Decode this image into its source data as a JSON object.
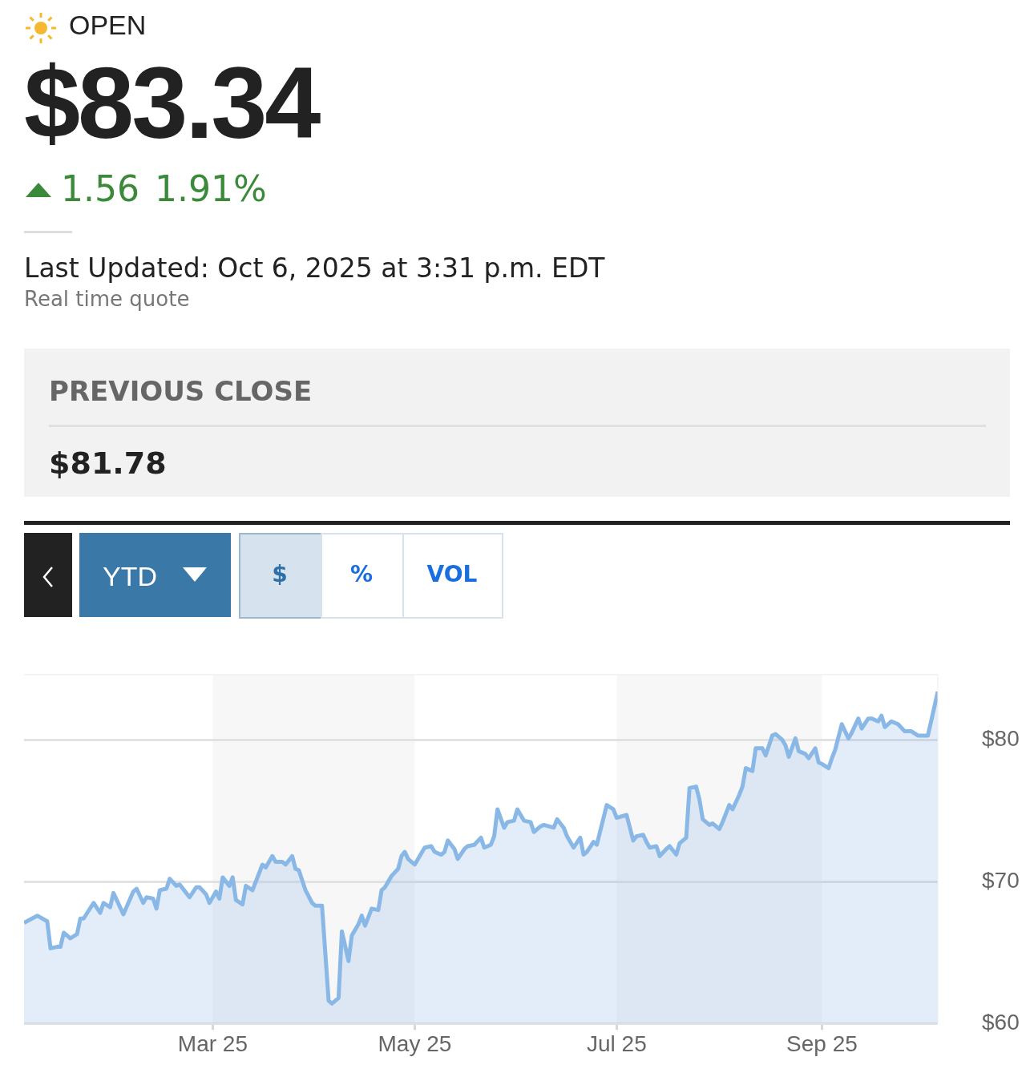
{
  "chart_data": {
    "type": "area",
    "title": "$83.34",
    "annotations": [
      "OPEN",
      "1.56",
      "1.91%",
      "Last Updated: Oct 6, 2025 at 3:31 p.m. EDT",
      "Real time quote",
      "PREVIOUS CLOSE",
      "$81.78",
      "YTD",
      "$",
      "%",
      "VOL"
    ],
    "x": [
      "2025-01-03",
      "2025-01-07",
      "2025-01-10",
      "2025-01-11",
      "2025-01-13",
      "2025-01-14",
      "2025-01-15",
      "2025-01-17",
      "2025-01-19",
      "2025-01-20",
      "2025-01-21",
      "2025-01-24",
      "2025-01-26",
      "2025-01-27",
      "2025-01-29",
      "2025-01-30",
      "2025-02-02",
      "2025-02-05",
      "2025-02-06",
      "2025-02-08",
      "2025-02-09",
      "2025-02-11",
      "2025-02-12",
      "2025-02-13",
      "2025-02-15",
      "2025-02-16",
      "2025-02-18",
      "2025-02-19",
      "2025-02-21",
      "2025-02-22",
      "2025-02-24",
      "2025-02-25",
      "2025-02-27",
      "2025-02-28",
      "2025-03-02",
      "2025-03-03",
      "2025-03-04",
      "2025-03-06",
      "2025-03-07",
      "2025-03-08",
      "2025-03-10",
      "2025-03-11",
      "2025-03-13",
      "2025-03-16",
      "2025-03-17",
      "2025-03-19",
      "2025-03-20",
      "2025-03-22",
      "2025-03-23",
      "2025-03-25",
      "2025-03-26",
      "2025-03-27",
      "2025-03-29",
      "2025-03-31",
      "2025-04-01",
      "2025-04-03",
      "2025-04-05",
      "2025-04-06",
      "2025-04-08",
      "2025-04-09",
      "2025-04-11",
      "2025-04-12",
      "2025-04-14",
      "2025-04-15",
      "2025-04-16",
      "2025-04-18",
      "2025-04-20",
      "2025-04-21",
      "2025-04-22",
      "2025-04-24",
      "2025-04-26",
      "2025-04-27",
      "2025-04-28",
      "2025-04-29",
      "2025-05-01",
      "2025-05-04",
      "2025-05-06",
      "2025-05-07",
      "2025-05-09",
      "2025-05-10",
      "2025-05-11",
      "2025-05-13",
      "2025-05-14",
      "2025-05-16",
      "2025-05-17",
      "2025-05-19",
      "2025-05-21",
      "2025-05-22",
      "2025-05-24",
      "2025-05-25",
      "2025-05-26",
      "2025-05-28",
      "2025-05-29",
      "2025-05-31",
      "2025-06-01",
      "2025-06-03",
      "2025-06-05",
      "2025-06-06",
      "2025-06-08",
      "2025-06-09",
      "2025-06-12",
      "2025-06-13",
      "2025-06-15",
      "2025-06-16",
      "2025-06-18",
      "2025-06-20",
      "2025-06-21",
      "2025-06-22",
      "2025-06-24",
      "2025-06-25",
      "2025-06-28",
      "2025-06-30",
      "2025-07-01",
      "2025-07-04",
      "2025-07-06",
      "2025-07-07",
      "2025-07-09",
      "2025-07-10",
      "2025-07-11",
      "2025-07-13",
      "2025-07-14",
      "2025-07-16",
      "2025-07-17",
      "2025-07-19",
      "2025-07-20",
      "2025-07-22",
      "2025-07-23",
      "2025-07-25",
      "2025-07-26",
      "2025-07-27",
      "2025-07-29",
      "2025-07-30",
      "2025-08-01",
      "2025-08-02",
      "2025-08-04",
      "2025-08-05",
      "2025-08-07",
      "2025-08-08",
      "2025-08-09",
      "2025-08-11",
      "2025-08-12",
      "2025-08-14",
      "2025-08-15",
      "2025-08-17",
      "2025-08-18",
      "2025-08-20",
      "2025-08-21",
      "2025-08-22",
      "2025-08-24",
      "2025-08-25",
      "2025-08-27",
      "2025-08-28",
      "2025-08-30",
      "2025-08-31",
      "2025-09-01",
      "2025-09-03",
      "2025-09-04",
      "2025-09-05",
      "2025-09-07",
      "2025-09-09",
      "2025-09-10",
      "2025-09-12",
      "2025-09-13",
      "2025-09-15",
      "2025-09-16",
      "2025-09-18",
      "2025-09-19",
      "2025-09-20",
      "2025-09-22",
      "2025-09-24",
      "2025-09-26",
      "2025-09-28",
      "2025-09-30",
      "2025-10-03",
      "2025-10-06"
    ],
    "series": [
      {
        "color": "#8ab8e6",
        "values": [
          67.1,
          67.6,
          67.2,
          65.3,
          65.4,
          65.4,
          66.4,
          66.0,
          66.3,
          67.4,
          67.4,
          68.5,
          67.8,
          68.5,
          68.2,
          69.2,
          67.7,
          69.3,
          69.5,
          68.5,
          68.9,
          68.8,
          68.1,
          69.4,
          69.5,
          70.2,
          69.7,
          69.8,
          69.2,
          68.9,
          69.6,
          69.6,
          69.1,
          68.5,
          69.3,
          68.8,
          70.3,
          69.7,
          70.3,
          68.7,
          68.4,
          69.7,
          69.4,
          71.2,
          71.0,
          71.8,
          71.4,
          71.4,
          71.2,
          71.8,
          70.9,
          70.8,
          69.4,
          68.5,
          68.3,
          68.3,
          61.6,
          61.4,
          61.8,
          66.5,
          64.4,
          66.2,
          67.0,
          67.6,
          66.9,
          68.1,
          68.0,
          69.4,
          69.6,
          70.4,
          70.9,
          71.8,
          72.1,
          71.6,
          71.2,
          72.4,
          72.5,
          72.1,
          71.9,
          72.1,
          72.9,
          72.3,
          71.6,
          72.3,
          72.5,
          72.6,
          73.1,
          72.4,
          72.6,
          73.2,
          75.1,
          73.8,
          74.2,
          74.3,
          75.1,
          74.3,
          74.2,
          73.5,
          73.9,
          74.0,
          73.8,
          74.4,
          73.8,
          73.2,
          72.4,
          73.1,
          71.9,
          72.1,
          72.8,
          72.6,
          75.4,
          75.1,
          74.5,
          74.7,
          72.9,
          73.2,
          73.3,
          72.8,
          72.4,
          72.5,
          71.8,
          72.3,
          72.5,
          71.9,
          72.7,
          73.1,
          76.6,
          76.7,
          75.8,
          74.4,
          74.0,
          74.1,
          73.7,
          74.2,
          75.4,
          75.1,
          76.1,
          76.7,
          78.0,
          77.8,
          79.4,
          79.4,
          78.9,
          80.3,
          80.4,
          80.0,
          79.6,
          78.8,
          80.1,
          79.2,
          79.0,
          78.7,
          79.4,
          78.4,
          78.3,
          78.0,
          78.7,
          79.3,
          81.1,
          80.1,
          80.5,
          81.5,
          80.8,
          81.5,
          81.5,
          81.3,
          81.7,
          80.9,
          81.3,
          81.1,
          80.6,
          80.6,
          80.3,
          80.3,
          83.4
        ]
      }
    ],
    "xlim": [
      "2025-01-03",
      "2025-10-06"
    ],
    "xticks": [
      {
        "value": "2025-03-01",
        "label": "Mar 25"
      },
      {
        "value": "2025-05-01",
        "label": "May 25"
      },
      {
        "value": "2025-07-01",
        "label": "Jul 25"
      },
      {
        "value": "2025-09-01",
        "label": "Sep 25"
      }
    ],
    "ylim": [
      60,
      84.6
    ],
    "yticks": [
      {
        "value": 60,
        "label": "$60"
      },
      {
        "value": 70,
        "label": "$70"
      },
      {
        "value": 80,
        "label": "$80"
      }
    ],
    "bands": [
      {
        "axis": "x",
        "from": "2025-03-01",
        "to": "2025-05-01",
        "color": "#f7f7f7"
      },
      {
        "axis": "x",
        "from": "2025-07-01",
        "to": "2025-09-01",
        "color": "#f7f7f7"
      }
    ],
    "grid": "y",
    "legend": false,
    "marker": "none",
    "line_style": "solid"
  }
}
